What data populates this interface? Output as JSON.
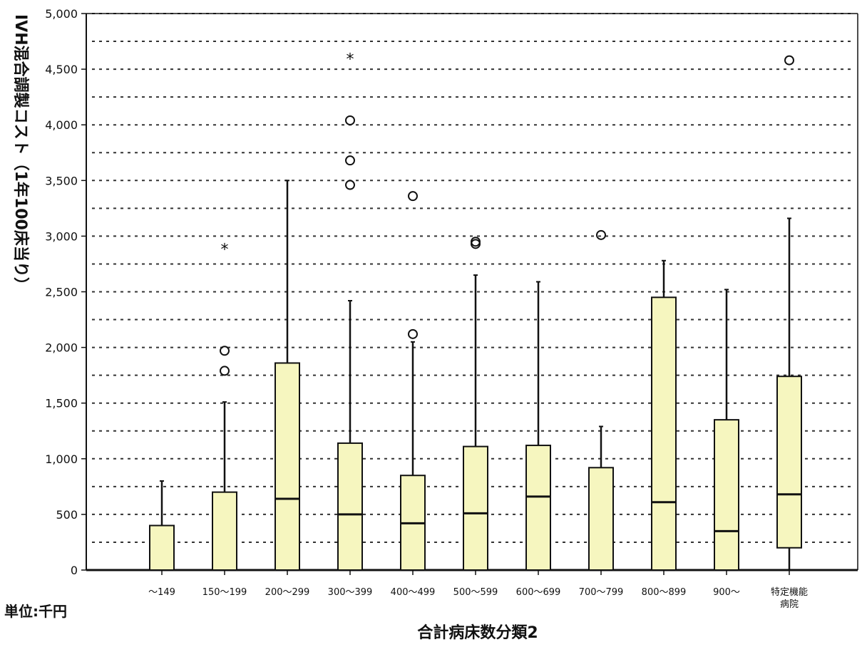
{
  "chart_data": {
    "type": "boxplot",
    "title": "",
    "xlabel": "合計病床数分類2",
    "ylabel": "IVH混合調製コスト（1年100床当り）",
    "unit_note": "単位:千円",
    "ylim": [
      0,
      5000
    ],
    "yticks": [
      0,
      500,
      1000,
      1500,
      2000,
      2500,
      3000,
      3500,
      4000,
      4500,
      5000
    ],
    "ytick_labels": [
      "0",
      "500",
      "1,000",
      "1,500",
      "2,000",
      "2,500",
      "3,000",
      "3,500",
      "4,000",
      "4,500",
      "5,000"
    ],
    "grid": "dotted horizontal every 250",
    "box_color": "#f6f6bf",
    "categories": [
      {
        "label": [
          "～149"
        ],
        "min": 0,
        "q1": 0,
        "median": 0,
        "q3": 400,
        "max": 800,
        "outliers": [],
        "extremes": []
      },
      {
        "label": [
          "150～199"
        ],
        "min": 0,
        "q1": 0,
        "median": 0,
        "q3": 700,
        "max": 1510,
        "outliers": [
          1790,
          1970
        ],
        "extremes": [
          2890
        ]
      },
      {
        "label": [
          "200～299"
        ],
        "min": 0,
        "q1": 0,
        "median": 640,
        "q3": 1860,
        "max": 3500,
        "outliers": [],
        "extremes": []
      },
      {
        "label": [
          "300～399"
        ],
        "min": 0,
        "q1": 0,
        "median": 500,
        "q3": 1140,
        "max": 2420,
        "outliers": [
          3460,
          3680,
          4040
        ],
        "extremes": [
          4600
        ]
      },
      {
        "label": [
          "400～499"
        ],
        "min": 0,
        "q1": 0,
        "median": 420,
        "q3": 850,
        "max": 2050,
        "outliers": [
          2120,
          3360
        ],
        "extremes": []
      },
      {
        "label": [
          "500～599"
        ],
        "min": 0,
        "q1": 0,
        "median": 510,
        "q3": 1110,
        "max": 2650,
        "outliers": [
          2930,
          2950
        ],
        "extremes": []
      },
      {
        "label": [
          "600～699"
        ],
        "min": 0,
        "q1": 0,
        "median": 660,
        "q3": 1120,
        "max": 2590,
        "outliers": [],
        "extremes": []
      },
      {
        "label": [
          "700～799"
        ],
        "min": 0,
        "q1": 0,
        "median": 0,
        "q3": 920,
        "max": 1290,
        "outliers": [
          3010
        ],
        "extremes": []
      },
      {
        "label": [
          "800～899"
        ],
        "min": 0,
        "q1": 0,
        "median": 610,
        "q3": 2450,
        "max": 2780,
        "outliers": [],
        "extremes": []
      },
      {
        "label": [
          "900～"
        ],
        "min": 0,
        "q1": 0,
        "median": 350,
        "q3": 1350,
        "max": 2520,
        "outliers": [],
        "extremes": []
      },
      {
        "label": [
          "特定機能",
          "病院"
        ],
        "min": 0,
        "q1": 200,
        "median": 680,
        "q3": 1740,
        "max": 3160,
        "outliers": [
          4580
        ],
        "extremes": []
      }
    ]
  }
}
